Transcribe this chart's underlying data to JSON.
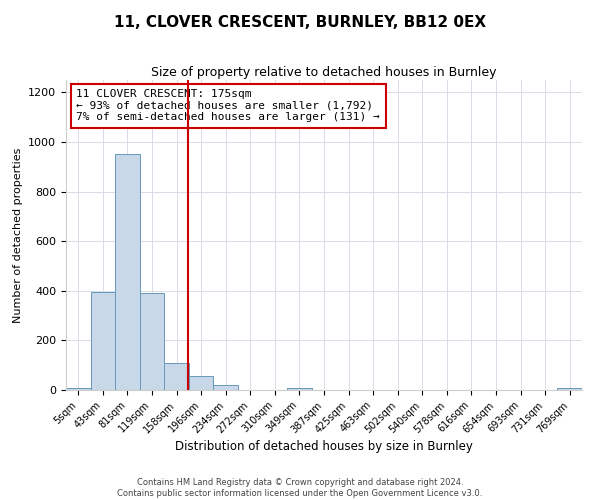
{
  "title": "11, CLOVER CRESCENT, BURNLEY, BB12 0EX",
  "subtitle": "Size of property relative to detached houses in Burnley",
  "xlabel": "Distribution of detached houses by size in Burnley",
  "ylabel": "Number of detached properties",
  "bar_labels": [
    "5sqm",
    "43sqm",
    "81sqm",
    "119sqm",
    "158sqm",
    "196sqm",
    "234sqm",
    "272sqm",
    "310sqm",
    "349sqm",
    "387sqm",
    "425sqm",
    "463sqm",
    "502sqm",
    "540sqm",
    "578sqm",
    "616sqm",
    "654sqm",
    "693sqm",
    "731sqm",
    "769sqm"
  ],
  "bar_values": [
    10,
    395,
    950,
    390,
    110,
    55,
    22,
    0,
    0,
    10,
    0,
    0,
    0,
    0,
    0,
    0,
    0,
    0,
    0,
    0,
    10
  ],
  "bar_color": "#c8d8e8",
  "bar_edgecolor": "#6699bb",
  "vline_color": "#cc0000",
  "annotation_text": "11 CLOVER CRESCENT: 175sqm\n← 93% of detached houses are smaller (1,792)\n7% of semi-detached houses are larger (131) →",
  "annotation_box_color": "#ffffff",
  "annotation_box_edgecolor": "#cc0000",
  "ylim": [
    0,
    1250
  ],
  "yticks": [
    0,
    200,
    400,
    600,
    800,
    1000,
    1200
  ],
  "footer_line1": "Contains HM Land Registry data © Crown copyright and database right 2024.",
  "footer_line2": "Contains public sector information licensed under the Open Government Licence v3.0.",
  "background_color": "#ffffff",
  "grid_color": "#d8dce8"
}
